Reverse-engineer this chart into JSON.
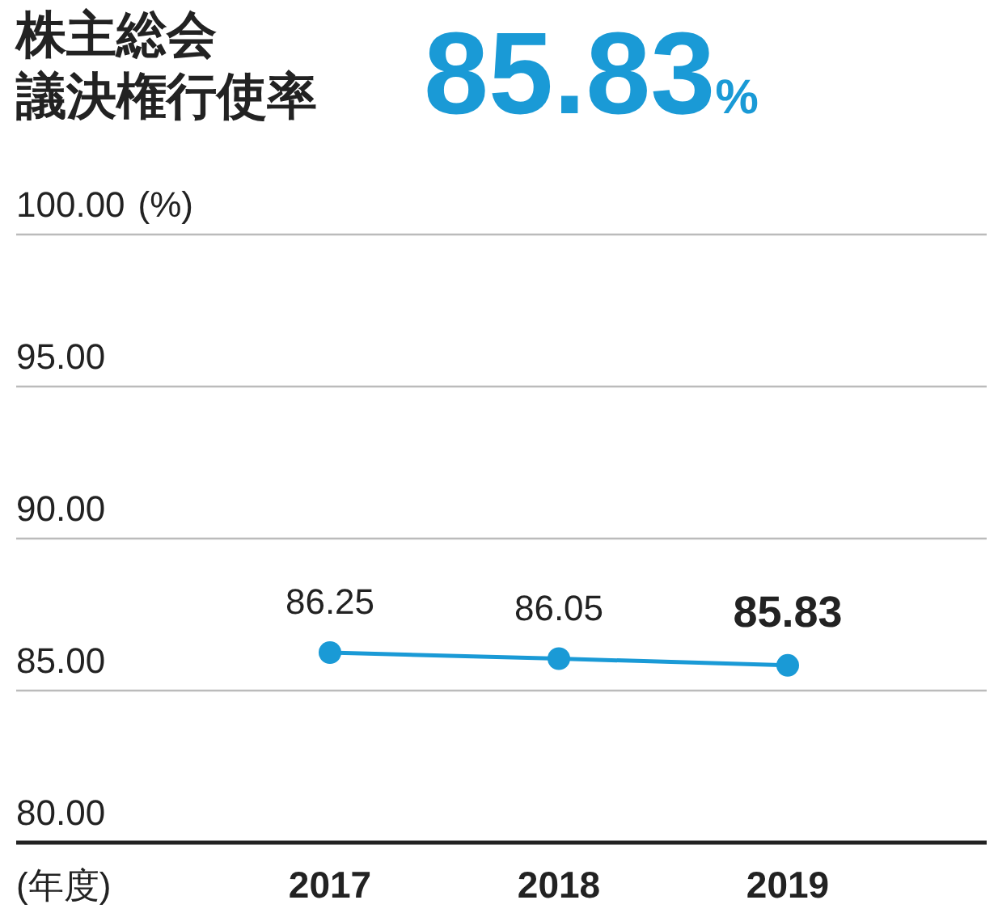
{
  "chart_data": {
    "type": "line",
    "title": "株主総会議決権行使率",
    "subtitle": "85.83%",
    "ylabel": "(%)",
    "xlabel": "(年度)",
    "categories": [
      "2017",
      "2018",
      "2019"
    ],
    "series": [
      {
        "color": "#1a9ad6",
        "values": [
          86.25,
          86.05,
          85.83
        ]
      }
    ],
    "data_labels": true,
    "ylim": [
      80,
      100
    ],
    "yticks": [
      {
        "value": 80,
        "label": "80.00"
      },
      {
        "value": 85,
        "label": "85.00"
      },
      {
        "value": 90,
        "label": "90.00"
      },
      {
        "value": 95,
        "label": "95.00"
      },
      {
        "value": 100,
        "label": "100.00"
      }
    ],
    "grid": "y",
    "marker": "circle",
    "line_style": "solid"
  }
}
